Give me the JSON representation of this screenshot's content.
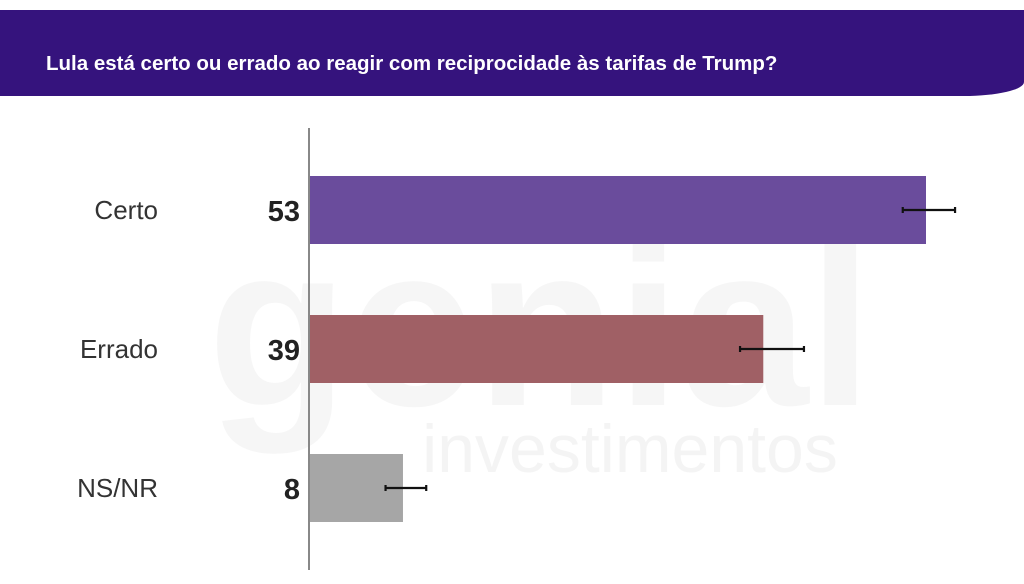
{
  "header": {
    "title": "Lula está certo ou errado ao reagir com reciprocidade às tarifas de Trump?"
  },
  "watermark": {
    "line1": "genial",
    "line2": "investimentos"
  },
  "colors": {
    "header_bg": "#35137d",
    "bar_certo": "#6a4c9c",
    "bar_errado": "#a06065",
    "bar_nsnr": "#a6a6a6",
    "axis": "#888888",
    "error_bar": "#111111"
  },
  "chart_data": {
    "type": "bar",
    "orientation": "horizontal",
    "categories": [
      "Certo",
      "Errado",
      "NS/NR"
    ],
    "values": [
      53,
      39,
      8
    ],
    "value_labels": [
      "53",
      "39",
      "8"
    ],
    "error_bars": [
      [
        51,
        55.5
      ],
      [
        37,
        42.5
      ],
      [
        6.5,
        10
      ]
    ],
    "xlim": [
      0,
      65
    ],
    "colors": [
      "#6a4c9c",
      "#a06065",
      "#a6a6a6"
    ],
    "grid": false,
    "legend": "none"
  }
}
